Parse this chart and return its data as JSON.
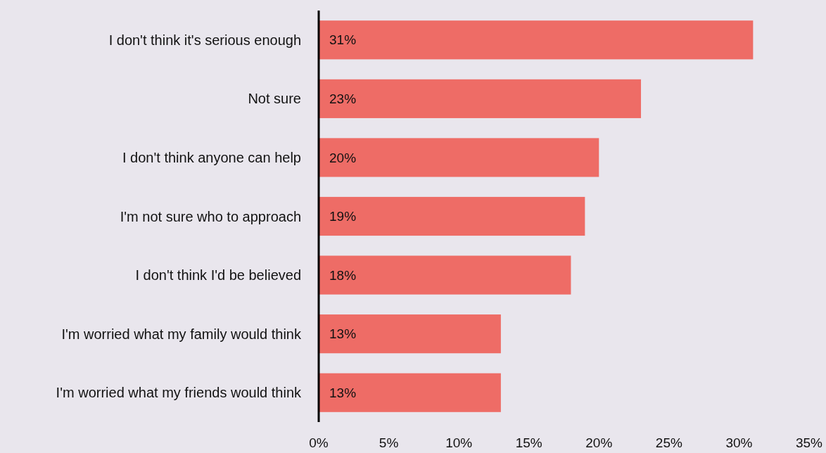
{
  "chart_data": {
    "type": "bar",
    "orientation": "horizontal",
    "categories": [
      "I don't think it's serious enough",
      "Not sure",
      "I don't think anyone can help",
      "I'm not sure who to approach",
      "I don't think I'd be believed",
      "I'm worried what my family would think",
      "I'm worried what my friends would think"
    ],
    "values": [
      31,
      23,
      20,
      19,
      18,
      13,
      13
    ],
    "value_labels": [
      "31%",
      "23%",
      "20%",
      "19%",
      "18%",
      "13%",
      "13%"
    ],
    "color": "#ee6c66",
    "xlim": [
      0,
      35
    ],
    "xticks": [
      {
        "value": 0,
        "label": "0%"
      },
      {
        "value": 5,
        "label": "5%"
      },
      {
        "value": 10,
        "label": "10%"
      },
      {
        "value": 15,
        "label": "15%"
      },
      {
        "value": 20,
        "label": "20%"
      },
      {
        "value": 25,
        "label": "25%"
      },
      {
        "value": 30,
        "label": "30%"
      },
      {
        "value": 35,
        "label": "35%"
      }
    ],
    "grid": false
  }
}
